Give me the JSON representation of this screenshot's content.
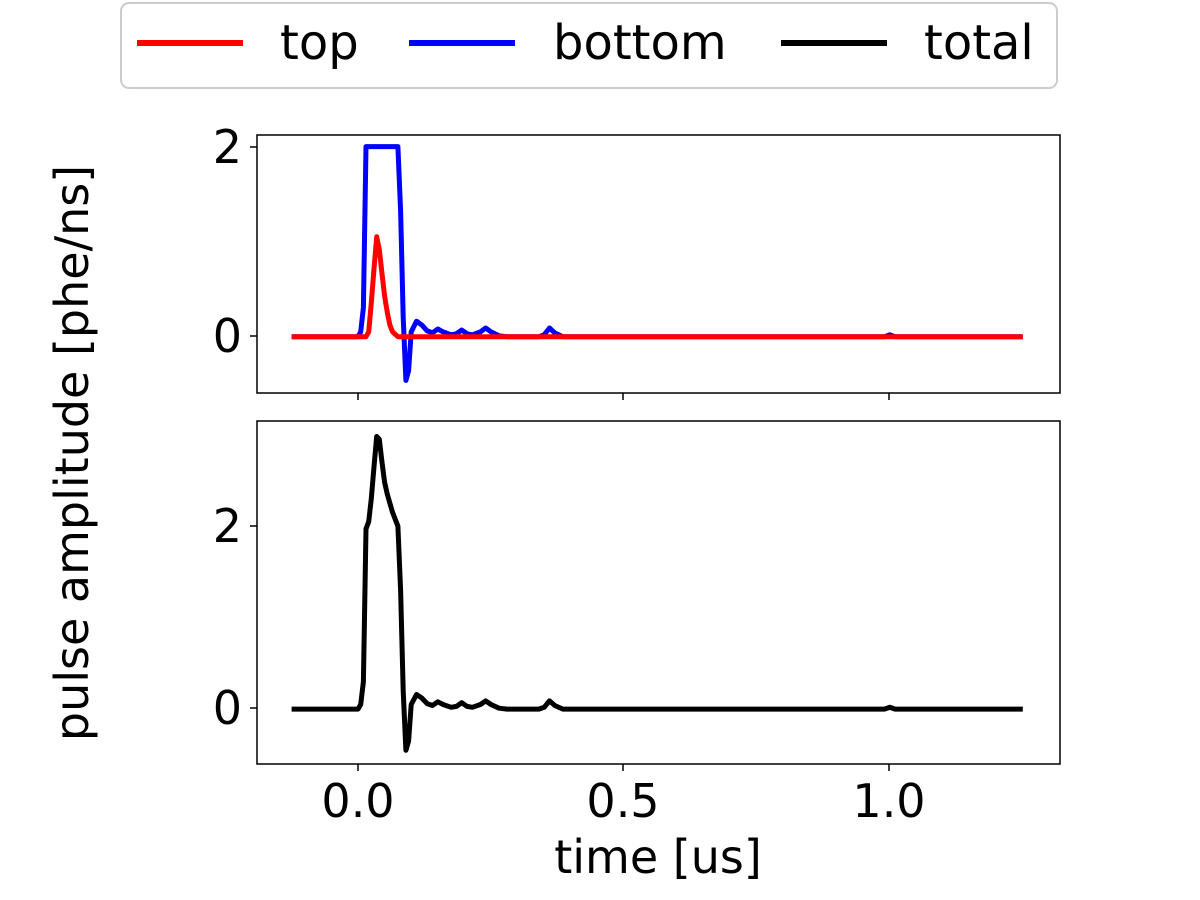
{
  "chart_data": {
    "type": "line",
    "xlabel": "time [us]",
    "ylabel": "pulse amplitude [phe/ns]",
    "xlim": [
      -0.19,
      1.32
    ],
    "x_ticks": [
      "0.0",
      "0.5",
      "1.0"
    ],
    "x_tick_values": [
      0.0,
      0.5,
      1.0
    ],
    "legend": {
      "placement": "top-center",
      "entries": [
        {
          "label": "top",
          "color": "#ff0000"
        },
        {
          "label": "bottom",
          "color": "#0000ff"
        },
        {
          "label": "total",
          "color": "#000000"
        }
      ]
    },
    "panels": [
      {
        "ylim": [
          -0.58,
          2.08
        ],
        "y_ticks": [
          "0",
          "2"
        ],
        "y_tick_values": [
          0,
          2
        ],
        "series": [
          {
            "name": "bottom",
            "color": "#0000ff",
            "points": [
              [
                -0.125,
                0
              ],
              [
                0.0,
                0
              ],
              [
                0.005,
                0.05
              ],
              [
                0.01,
                0.3
              ],
              [
                0.015,
                1.96
              ],
              [
                0.075,
                1.96
              ],
              [
                0.08,
                1.3
              ],
              [
                0.085,
                0.2
              ],
              [
                0.09,
                -0.45
              ],
              [
                0.095,
                -0.35
              ],
              [
                0.1,
                0.05
              ],
              [
                0.11,
                0.16
              ],
              [
                0.12,
                0.12
              ],
              [
                0.13,
                0.06
              ],
              [
                0.14,
                0.04
              ],
              [
                0.15,
                0.08
              ],
              [
                0.16,
                0.05
              ],
              [
                0.175,
                0.02
              ],
              [
                0.185,
                0.03
              ],
              [
                0.195,
                0.07
              ],
              [
                0.205,
                0.03
              ],
              [
                0.215,
                0.02
              ],
              [
                0.23,
                0.05
              ],
              [
                0.24,
                0.09
              ],
              [
                0.25,
                0.05
              ],
              [
                0.265,
                0.01
              ],
              [
                0.28,
                0
              ],
              [
                0.34,
                0
              ],
              [
                0.35,
                0.02
              ],
              [
                0.36,
                0.09
              ],
              [
                0.37,
                0.04
              ],
              [
                0.385,
                0
              ],
              [
                0.99,
                0
              ],
              [
                1.0,
                0.02
              ],
              [
                1.01,
                0
              ],
              [
                1.25,
                0
              ]
            ]
          },
          {
            "name": "top",
            "color": "#ff0000",
            "points": [
              [
                -0.125,
                0
              ],
              [
                0.015,
                0
              ],
              [
                0.02,
                0.05
              ],
              [
                0.025,
                0.35
              ],
              [
                0.03,
                0.7
              ],
              [
                0.035,
                1.03
              ],
              [
                0.04,
                0.9
              ],
              [
                0.045,
                0.65
              ],
              [
                0.05,
                0.42
              ],
              [
                0.055,
                0.25
              ],
              [
                0.06,
                0.12
              ],
              [
                0.065,
                0.05
              ],
              [
                0.075,
                0
              ],
              [
                1.25,
                0
              ]
            ]
          }
        ]
      },
      {
        "ylim": [
          -0.6,
          3.15
        ],
        "y_ticks": [
          "0",
          "2"
        ],
        "y_tick_values": [
          0,
          2
        ],
        "series": [
          {
            "name": "total",
            "color": "#000000",
            "points": [
              [
                -0.125,
                0
              ],
              [
                0.0,
                0
              ],
              [
                0.005,
                0.05
              ],
              [
                0.01,
                0.3
              ],
              [
                0.015,
                1.97
              ],
              [
                0.02,
                2.05
              ],
              [
                0.025,
                2.3
              ],
              [
                0.03,
                2.65
              ],
              [
                0.035,
                2.98
              ],
              [
                0.04,
                2.95
              ],
              [
                0.045,
                2.7
              ],
              [
                0.05,
                2.48
              ],
              [
                0.055,
                2.35
              ],
              [
                0.06,
                2.25
              ],
              [
                0.065,
                2.15
              ],
              [
                0.075,
                2.0
              ],
              [
                0.08,
                1.3
              ],
              [
                0.085,
                0.2
              ],
              [
                0.09,
                -0.45
              ],
              [
                0.095,
                -0.35
              ],
              [
                0.1,
                0.05
              ],
              [
                0.11,
                0.16
              ],
              [
                0.12,
                0.12
              ],
              [
                0.13,
                0.06
              ],
              [
                0.14,
                0.04
              ],
              [
                0.15,
                0.08
              ],
              [
                0.16,
                0.05
              ],
              [
                0.175,
                0.02
              ],
              [
                0.185,
                0.03
              ],
              [
                0.195,
                0.07
              ],
              [
                0.205,
                0.03
              ],
              [
                0.215,
                0.02
              ],
              [
                0.23,
                0.05
              ],
              [
                0.24,
                0.09
              ],
              [
                0.25,
                0.05
              ],
              [
                0.265,
                0.01
              ],
              [
                0.28,
                0
              ],
              [
                0.34,
                0
              ],
              [
                0.35,
                0.02
              ],
              [
                0.36,
                0.09
              ],
              [
                0.37,
                0.04
              ],
              [
                0.385,
                0
              ],
              [
                0.99,
                0
              ],
              [
                1.0,
                0.02
              ],
              [
                1.01,
                0
              ],
              [
                1.25,
                0
              ]
            ]
          }
        ]
      }
    ]
  }
}
